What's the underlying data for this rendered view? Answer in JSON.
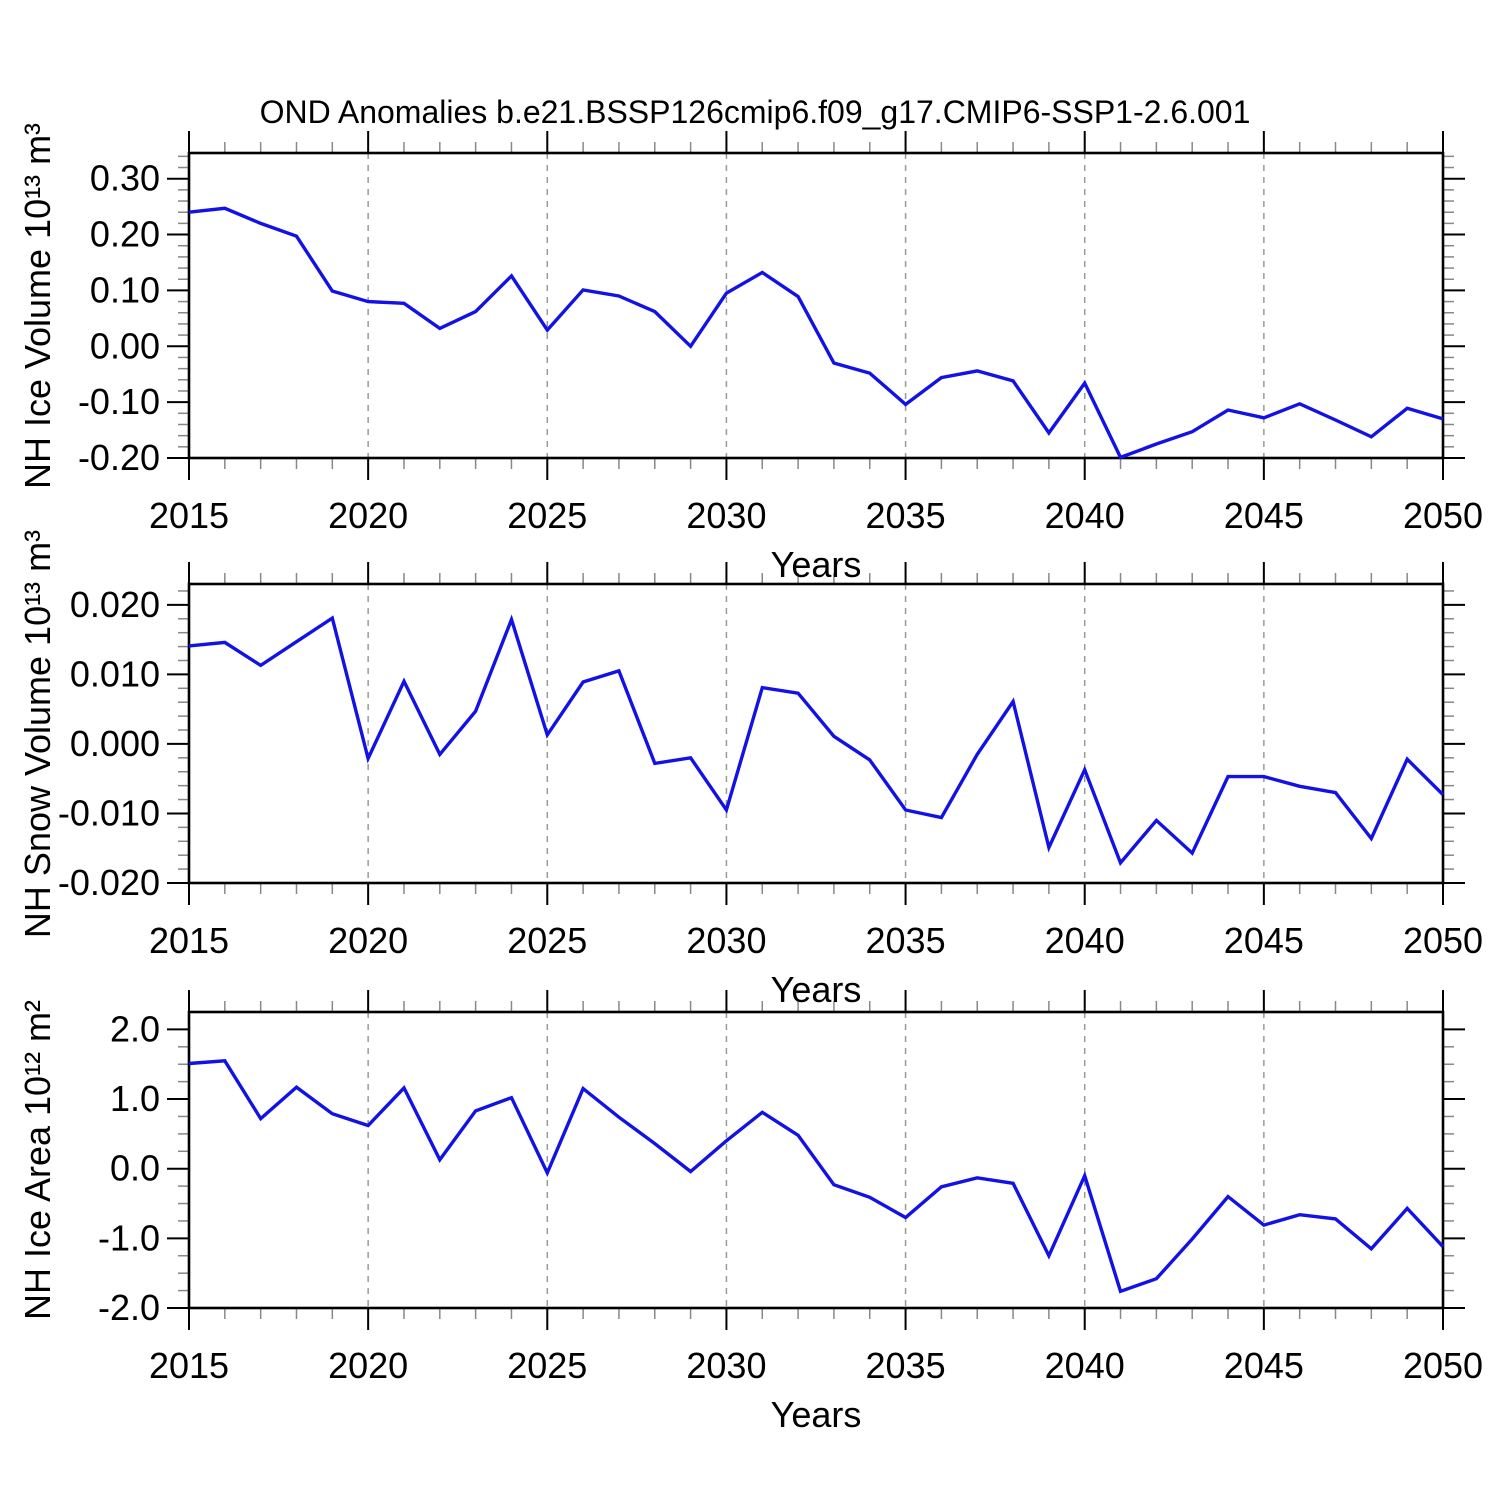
{
  "title": "OND Anomalies b.e21.BSSP126cmip6.f09_g17.CMIP6-SSP1-2.6.001",
  "xlabel": "Years",
  "x_tick_labels": [
    "2015",
    "2020",
    "2025",
    "2030",
    "2035",
    "2040",
    "2045",
    "2050"
  ],
  "colors": {
    "line": "#1212e6",
    "axis": "#000000",
    "grid": "#9a9a9a",
    "minor_tick": "#888888",
    "background": "#ffffff"
  },
  "chart_data": [
    {
      "type": "line",
      "panel": 1,
      "title": "OND Anomalies b.e21.BSSP126cmip6.f09_g17.CMIP6-SSP1-2.6.001",
      "xlabel": "Years",
      "ylabel": "NH Ice Volume 10¹³ m³",
      "legend": "none",
      "grid": "vertical-dashed",
      "xlim": [
        2015,
        2050
      ],
      "ylim": [
        -0.2,
        0.346
      ],
      "xticks": [
        2015,
        2020,
        2025,
        2030,
        2035,
        2040,
        2045,
        2050
      ],
      "yticks": [
        {
          "v": 0.3,
          "label": "0.30"
        },
        {
          "v": 0.2,
          "label": "0.20"
        },
        {
          "v": 0.1,
          "label": "0.10"
        },
        {
          "v": 0.0,
          "label": "0.00"
        },
        {
          "v": -0.1,
          "label": "-0.10"
        },
        {
          "v": -0.2,
          "label": "-0.20"
        }
      ],
      "y_minor_step": 0.02,
      "x": [
        2015,
        2016,
        2017,
        2018,
        2019,
        2020,
        2021,
        2022,
        2023,
        2024,
        2025,
        2026,
        2027,
        2028,
        2029,
        2030,
        2031,
        2032,
        2033,
        2034,
        2035,
        2036,
        2037,
        2038,
        2039,
        2040,
        2041,
        2042,
        2043,
        2044,
        2045,
        2046,
        2047,
        2048,
        2049,
        2050
      ],
      "y": [
        0.24,
        0.247,
        0.22,
        0.197,
        0.099,
        0.08,
        0.077,
        0.032,
        0.062,
        0.126,
        0.029,
        0.101,
        0.09,
        0.062,
        0.0,
        0.095,
        0.132,
        0.089,
        -0.03,
        -0.048,
        -0.104,
        -0.056,
        -0.044,
        -0.062,
        -0.155,
        -0.066,
        -0.199,
        -0.175,
        -0.153,
        -0.114,
        -0.128,
        -0.103,
        -0.132,
        -0.162,
        -0.111,
        -0.13
      ]
    },
    {
      "type": "line",
      "panel": 2,
      "xlabel": "Years",
      "ylabel": "NH Snow Volume 10¹³ m³",
      "legend": "none",
      "grid": "vertical-dashed",
      "xlim": [
        2015,
        2050
      ],
      "ylim": [
        -0.02,
        0.023
      ],
      "xticks": [
        2015,
        2020,
        2025,
        2030,
        2035,
        2040,
        2045,
        2050
      ],
      "yticks": [
        {
          "v": 0.02,
          "label": "0.020"
        },
        {
          "v": 0.01,
          "label": "0.010"
        },
        {
          "v": 0.0,
          "label": "0.000"
        },
        {
          "v": -0.01,
          "label": "-0.010"
        },
        {
          "v": -0.02,
          "label": "-0.020"
        }
      ],
      "y_minor_step": 0.002,
      "x": [
        2015,
        2016,
        2017,
        2018,
        2019,
        2020,
        2021,
        2022,
        2023,
        2024,
        2025,
        2026,
        2027,
        2028,
        2029,
        2030,
        2031,
        2032,
        2033,
        2034,
        2035,
        2036,
        2037,
        2038,
        2039,
        2040,
        2041,
        2042,
        2043,
        2044,
        2045,
        2046,
        2047,
        2048,
        2049,
        2050
      ],
      "y": [
        0.0141,
        0.0146,
        0.0113,
        0.0147,
        0.0181,
        -0.0021,
        0.009,
        -0.0015,
        0.0047,
        0.0179,
        0.0013,
        0.0089,
        0.0105,
        -0.0028,
        -0.002,
        -0.0095,
        0.0081,
        0.0073,
        0.0011,
        -0.0023,
        -0.0095,
        -0.0106,
        -0.0015,
        0.0061,
        -0.0149,
        -0.0037,
        -0.0171,
        -0.011,
        -0.0157,
        -0.0047,
        -0.0047,
        -0.0061,
        -0.007,
        -0.0136,
        -0.0022,
        -0.0073
      ]
    },
    {
      "type": "line",
      "panel": 3,
      "xlabel": "Years",
      "ylabel": "NH Ice Area 10¹² m²",
      "legend": "none",
      "grid": "vertical-dashed",
      "xlim": [
        2015,
        2050
      ],
      "ylim": [
        -2.0,
        2.25
      ],
      "xticks": [
        2015,
        2020,
        2025,
        2030,
        2035,
        2040,
        2045,
        2050
      ],
      "yticks": [
        {
          "v": 2.0,
          "label": "2.0"
        },
        {
          "v": 1.0,
          "label": "1.0"
        },
        {
          "v": 0.0,
          "label": "0.0"
        },
        {
          "v": -1.0,
          "label": "-1.0"
        },
        {
          "v": -2.0,
          "label": "-2.0"
        }
      ],
      "y_minor_step": 0.25,
      "x": [
        2015,
        2016,
        2017,
        2018,
        2019,
        2020,
        2021,
        2022,
        2023,
        2024,
        2025,
        2026,
        2027,
        2028,
        2029,
        2030,
        2031,
        2032,
        2033,
        2034,
        2035,
        2036,
        2037,
        2038,
        2039,
        2040,
        2041,
        2042,
        2043,
        2044,
        2045,
        2046,
        2047,
        2048,
        2049,
        2050
      ],
      "y": [
        1.51,
        1.55,
        0.72,
        1.17,
        0.79,
        0.62,
        1.16,
        0.13,
        0.83,
        1.02,
        -0.06,
        1.15,
        0.74,
        0.36,
        -0.04,
        0.4,
        0.81,
        0.48,
        -0.23,
        -0.41,
        -0.7,
        -0.26,
        -0.13,
        -0.21,
        -1.25,
        -0.1,
        -1.76,
        -1.58,
        -1.01,
        -0.4,
        -0.81,
        -0.66,
        -0.72,
        -1.15,
        -0.57,
        -1.12
      ]
    }
  ]
}
